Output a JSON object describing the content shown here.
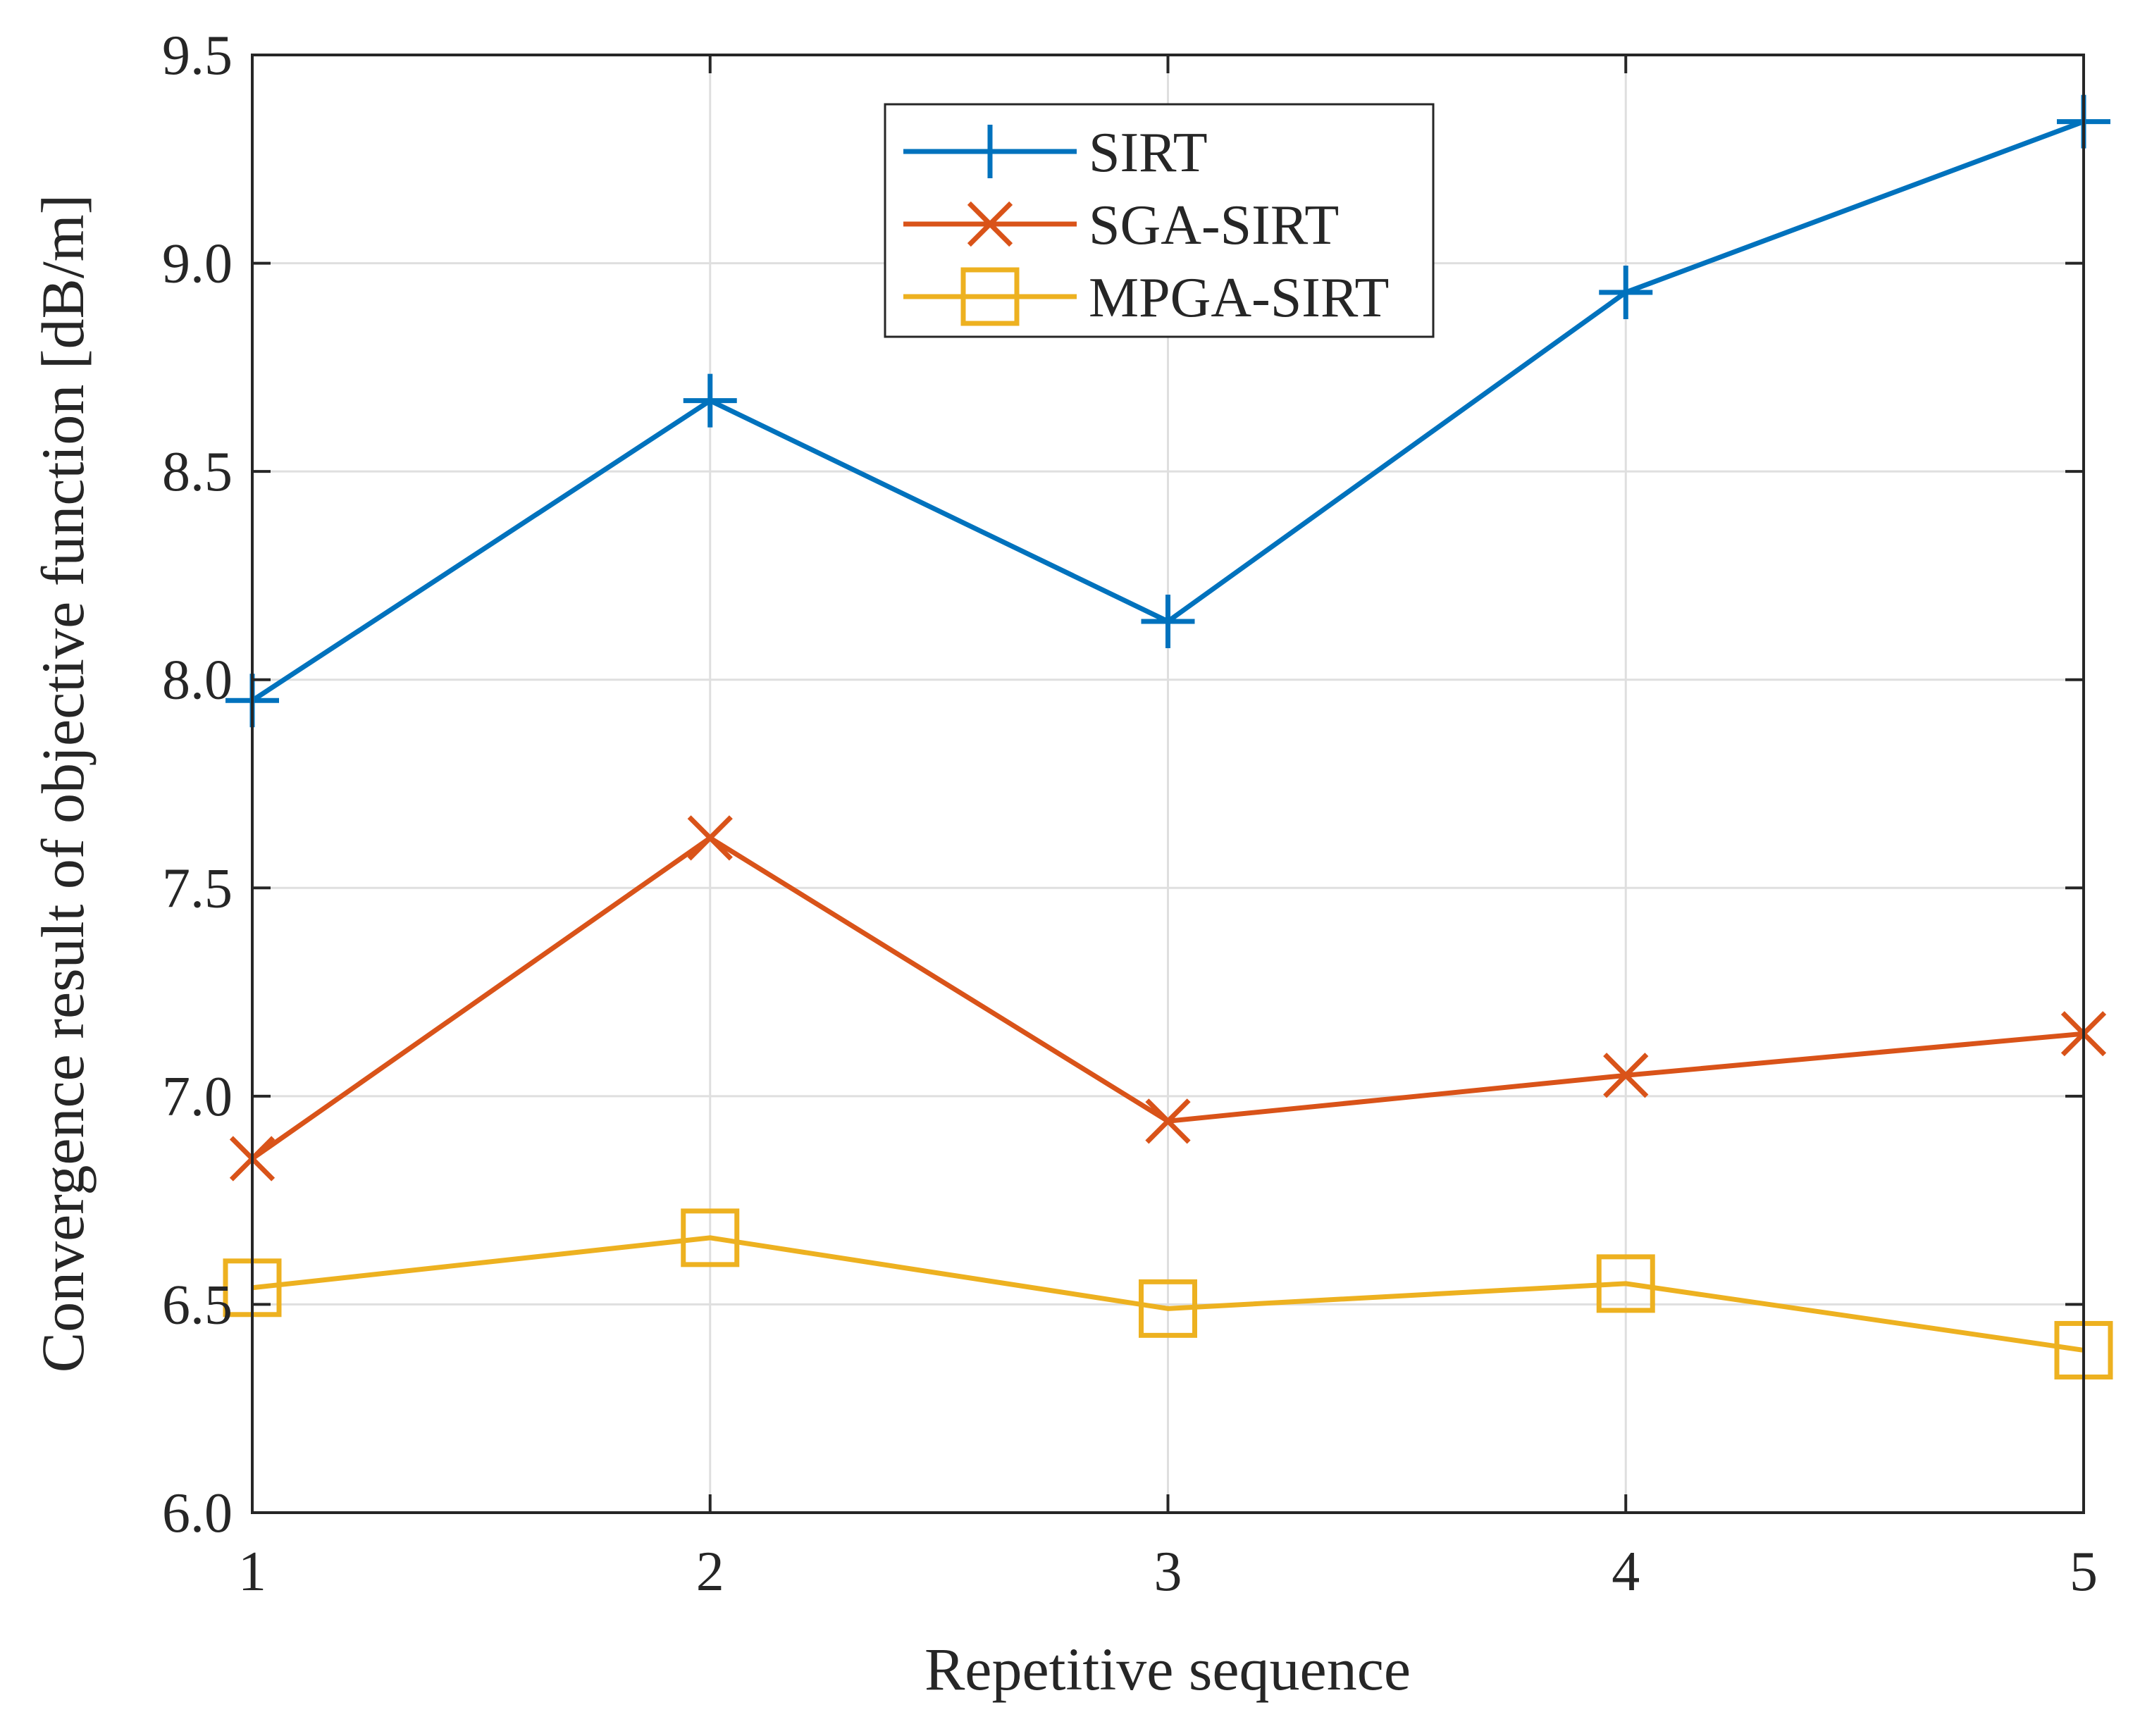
{
  "chart_data": {
    "type": "line",
    "title": "",
    "xlabel": "Repetitive sequence",
    "ylabel": "Convergence result of objective function [dB/m]",
    "x": [
      1,
      2,
      3,
      4,
      5
    ],
    "xlim": [
      1,
      5
    ],
    "ylim": [
      6.0,
      9.5
    ],
    "xticks": [
      1,
      2,
      3,
      4,
      5
    ],
    "xtick_labels": [
      "1",
      "2",
      "3",
      "4",
      "5"
    ],
    "yticks": [
      6.0,
      6.5,
      7.0,
      7.5,
      8.0,
      8.5,
      9.0,
      9.5
    ],
    "ytick_labels": [
      "6.0",
      "6.5",
      "7.0",
      "7.5",
      "8.0",
      "8.5",
      "9.0",
      "9.5"
    ],
    "grid": true,
    "legend_position": "top-center",
    "series": [
      {
        "name": "SIRT",
        "color": "#0072BD",
        "marker": "plus",
        "values": [
          7.95,
          8.67,
          8.14,
          8.93,
          9.34
        ]
      },
      {
        "name": "SGA-SIRT",
        "color": "#D95319",
        "marker": "x",
        "values": [
          6.85,
          7.62,
          6.94,
          7.05,
          7.15
        ]
      },
      {
        "name": "MPGA-SIRT",
        "color": "#EDB120",
        "marker": "square",
        "values": [
          6.54,
          6.66,
          6.49,
          6.55,
          6.39
        ]
      }
    ]
  }
}
